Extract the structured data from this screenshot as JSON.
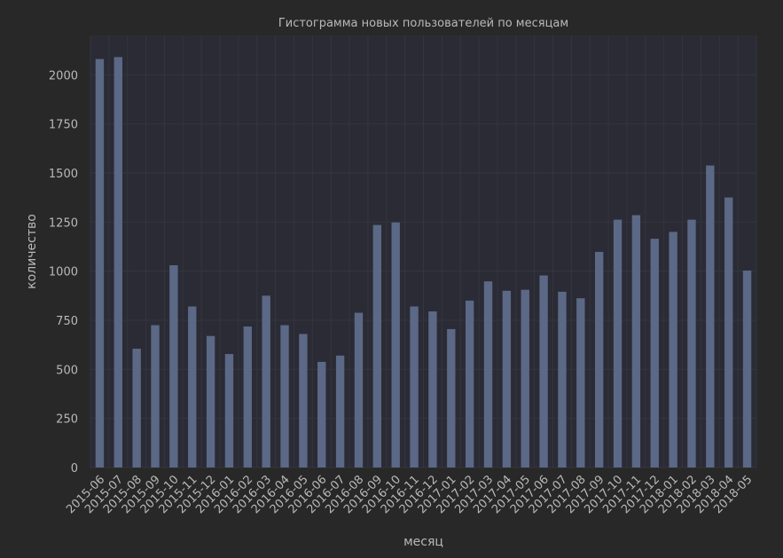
{
  "chart_data": {
    "type": "bar",
    "title": "Гистограмма новых пользователей по месяцам",
    "xlabel": "месяц",
    "ylabel": "количество",
    "ylim": [
      0,
      2200
    ],
    "yticks": [
      0,
      250,
      500,
      750,
      1000,
      1250,
      1500,
      1750,
      2000
    ],
    "grid": true,
    "categories": [
      "2015-06",
      "2015-07",
      "2015-08",
      "2015-09",
      "2015-10",
      "2015-11",
      "2015-12",
      "2016-01",
      "2016-02",
      "2016-03",
      "2016-04",
      "2016-05",
      "2016-06",
      "2016-07",
      "2016-08",
      "2016-09",
      "2016-10",
      "2016-11",
      "2016-12",
      "2017-01",
      "2017-02",
      "2017-03",
      "2017-04",
      "2017-05",
      "2017-06",
      "2017-07",
      "2017-08",
      "2017-09",
      "2017-10",
      "2017-11",
      "2017-12",
      "2018-01",
      "2018-02",
      "2018-03",
      "2018-04",
      "2018-05"
    ],
    "values": [
      2080,
      2090,
      605,
      725,
      1030,
      820,
      670,
      578,
      718,
      875,
      725,
      680,
      538,
      570,
      788,
      1235,
      1248,
      820,
      795,
      705,
      850,
      948,
      900,
      905,
      978,
      895,
      862,
      1098,
      1262,
      1285,
      1165,
      1200,
      1262,
      1538,
      1375,
      1003
    ],
    "colors": {
      "background": "#282828",
      "plot_background": "#2b2b35",
      "bar": "#5b6886",
      "grid": "#353540",
      "text": "#b9b9b9"
    }
  }
}
